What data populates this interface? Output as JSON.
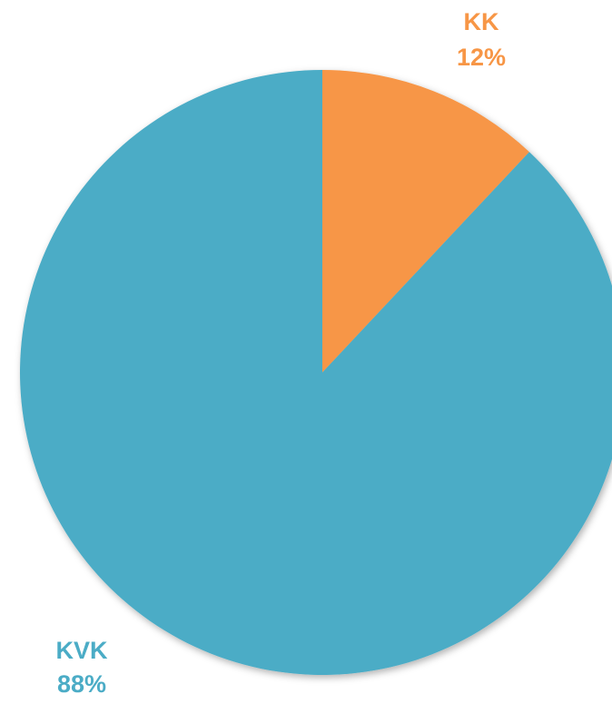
{
  "chart_data": {
    "type": "pie",
    "categories": [
      "KK",
      "KVK"
    ],
    "values": [
      12,
      88
    ],
    "value_labels": [
      "12%",
      "88%"
    ],
    "colors": [
      "#f79646",
      "#4bacc6"
    ]
  }
}
